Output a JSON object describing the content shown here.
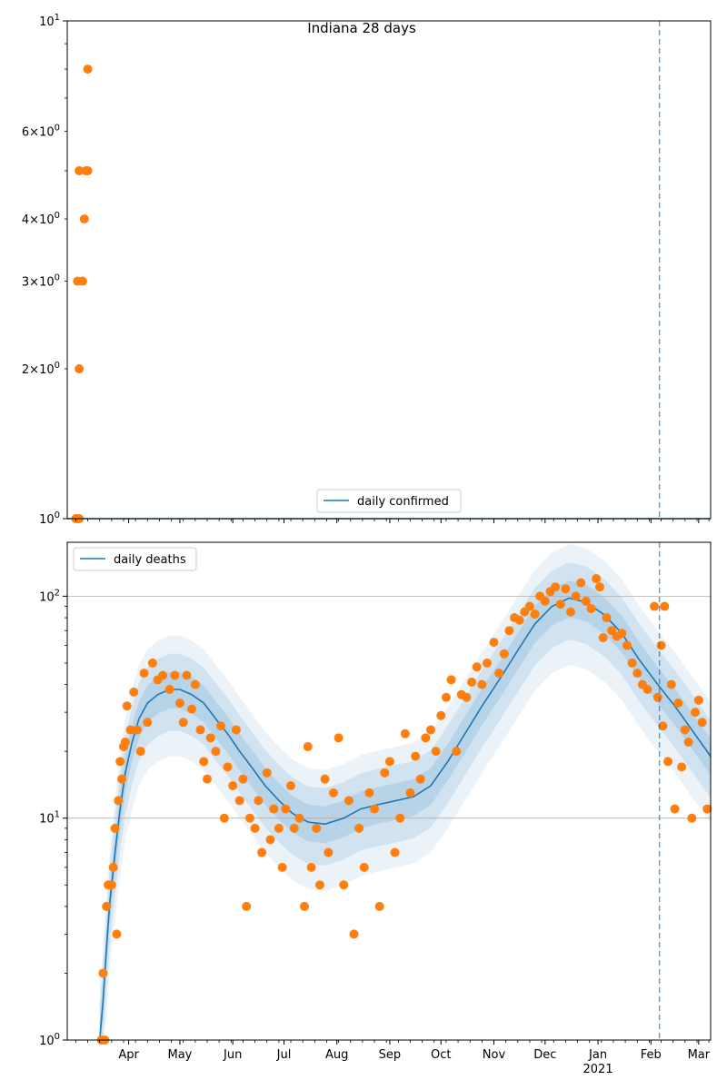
{
  "colors": {
    "line": "#1f77b4",
    "points": "#ff7f0e",
    "band": "#1f77b4",
    "grid": "#b0b0b0",
    "vline": "#1f77b4"
  },
  "chart_data": [
    {
      "type": "scatter",
      "title": "Indiana 28 days",
      "scale": "log",
      "ylim": [
        1,
        10
      ],
      "y_ticks": [
        {
          "v": 1,
          "label": "10^0"
        },
        {
          "v": 10,
          "label": "10^1"
        }
      ],
      "y_minor_ticks": [
        {
          "v": 2,
          "label": "2×10^0"
        },
        {
          "v": 3,
          "label": "3×10^0"
        },
        {
          "v": 4,
          "label": "4×10^0"
        },
        {
          "v": 6,
          "label": "6×10^0"
        }
      ],
      "x_range": [
        "2020-02-25",
        "2021-03-08"
      ],
      "legend": {
        "position": "bottom-center",
        "entries": [
          "daily confirmed"
        ]
      },
      "vline": "2021-02-06",
      "grid": false,
      "series": [
        {
          "name": "daily confirmed",
          "kind": "line",
          "points": [
            [
              "2020-02-25",
              1
            ],
            [
              "2021-03-08",
              1
            ]
          ]
        },
        {
          "name": "observed",
          "kind": "scatter",
          "points": [
            [
              "2020-03-01",
              1
            ],
            [
              "2020-03-02",
              1
            ],
            [
              "2020-03-03",
              1
            ],
            [
              "2020-03-02",
              3
            ],
            [
              "2020-03-03",
              2
            ],
            [
              "2020-03-03",
              5
            ],
            [
              "2020-03-05",
              3
            ],
            [
              "2020-03-06",
              4
            ],
            [
              "2020-03-07",
              5
            ],
            [
              "2020-03-08",
              5
            ],
            [
              "2020-03-08",
              8
            ]
          ]
        }
      ]
    },
    {
      "type": "line",
      "scale": "log",
      "ylim": [
        1,
        175
      ],
      "y_ticks": [
        {
          "v": 1,
          "label": "10^0"
        },
        {
          "v": 10,
          "label": "10^1"
        },
        {
          "v": 100,
          "label": "10^2"
        }
      ],
      "x_ticks": [
        {
          "date": "2020-04-01",
          "label": "Apr"
        },
        {
          "date": "2020-05-01",
          "label": "May"
        },
        {
          "date": "2020-06-01",
          "label": "Jun"
        },
        {
          "date": "2020-07-01",
          "label": "Jul"
        },
        {
          "date": "2020-08-01",
          "label": "Aug"
        },
        {
          "date": "2020-09-01",
          "label": "Sep"
        },
        {
          "date": "2020-10-01",
          "label": "Oct"
        },
        {
          "date": "2020-11-01",
          "label": "Nov"
        },
        {
          "date": "2020-12-01",
          "label": "Dec"
        },
        {
          "date": "2021-01-01",
          "label": "Jan",
          "sublabel": "2021"
        },
        {
          "date": "2021-02-01",
          "label": "Feb"
        },
        {
          "date": "2021-03-01",
          "label": "Mar"
        }
      ],
      "x_range": [
        "2020-02-25",
        "2021-03-08"
      ],
      "legend": {
        "position": "top-left",
        "entries": [
          "daily deaths"
        ]
      },
      "vline": "2021-02-06",
      "grid": true,
      "series": [
        {
          "name": "daily deaths",
          "kind": "line",
          "points": [
            [
              "2020-03-15",
              1
            ],
            [
              "2020-03-17",
              1.5
            ],
            [
              "2020-03-19",
              2.6
            ],
            [
              "2020-03-21",
              4.2
            ],
            [
              "2020-03-24",
              7
            ],
            [
              "2020-03-27",
              11
            ],
            [
              "2020-03-30",
              16
            ],
            [
              "2020-04-03",
              22
            ],
            [
              "2020-04-07",
              28
            ],
            [
              "2020-04-12",
              33
            ],
            [
              "2020-04-18",
              36
            ],
            [
              "2020-04-25",
              38
            ],
            [
              "2020-05-01",
              38
            ],
            [
              "2020-05-08",
              36
            ],
            [
              "2020-05-15",
              33
            ],
            [
              "2020-05-22",
              28
            ],
            [
              "2020-05-29",
              24
            ],
            [
              "2020-06-05",
              20
            ],
            [
              "2020-06-12",
              17
            ],
            [
              "2020-06-20",
              14
            ],
            [
              "2020-06-28",
              12
            ],
            [
              "2020-07-06",
              10.5
            ],
            [
              "2020-07-15",
              9.6
            ],
            [
              "2020-07-25",
              9.4
            ],
            [
              "2020-08-05",
              10
            ],
            [
              "2020-08-15",
              11
            ],
            [
              "2020-08-25",
              11.5
            ],
            [
              "2020-09-05",
              12
            ],
            [
              "2020-09-15",
              12.5
            ],
            [
              "2020-09-25",
              14
            ],
            [
              "2020-10-05",
              18
            ],
            [
              "2020-10-15",
              24
            ],
            [
              "2020-10-25",
              32
            ],
            [
              "2020-11-05",
              43
            ],
            [
              "2020-11-15",
              57
            ],
            [
              "2020-11-25",
              75
            ],
            [
              "2020-12-05",
              90
            ],
            [
              "2020-12-15",
              98
            ],
            [
              "2020-12-25",
              94
            ],
            [
              "2021-01-05",
              82
            ],
            [
              "2021-01-15",
              68
            ],
            [
              "2021-01-25",
              52
            ],
            [
              "2021-02-05",
              40
            ],
            [
              "2021-02-15",
              32
            ],
            [
              "2021-02-25",
              25
            ],
            [
              "2021-03-08",
              19
            ]
          ]
        },
        {
          "name": "observed",
          "kind": "scatter",
          "points": [
            [
              "2020-03-16",
              1
            ],
            [
              "2020-03-17",
              2
            ],
            [
              "2020-03-18",
              1
            ],
            [
              "2020-03-19",
              4
            ],
            [
              "2020-03-20",
              5
            ],
            [
              "2020-03-22",
              5
            ],
            [
              "2020-03-23",
              6
            ],
            [
              "2020-03-24",
              9
            ],
            [
              "2020-03-25",
              3
            ],
            [
              "2020-03-26",
              12
            ],
            [
              "2020-03-27",
              18
            ],
            [
              "2020-03-28",
              15
            ],
            [
              "2020-03-29",
              21
            ],
            [
              "2020-03-30",
              22
            ],
            [
              "2020-03-31",
              32
            ],
            [
              "2020-04-02",
              25
            ],
            [
              "2020-04-04",
              37
            ],
            [
              "2020-04-06",
              25
            ],
            [
              "2020-04-08",
              20
            ],
            [
              "2020-04-10",
              45
            ],
            [
              "2020-04-12",
              27
            ],
            [
              "2020-04-15",
              50
            ],
            [
              "2020-04-18",
              42
            ],
            [
              "2020-04-21",
              44
            ],
            [
              "2020-04-25",
              38
            ],
            [
              "2020-04-28",
              44
            ],
            [
              "2020-05-01",
              33
            ],
            [
              "2020-05-03",
              27
            ],
            [
              "2020-05-05",
              44
            ],
            [
              "2020-05-08",
              31
            ],
            [
              "2020-05-10",
              40
            ],
            [
              "2020-05-13",
              25
            ],
            [
              "2020-05-15",
              18
            ],
            [
              "2020-05-17",
              15
            ],
            [
              "2020-05-19",
              23
            ],
            [
              "2020-05-22",
              20
            ],
            [
              "2020-05-25",
              26
            ],
            [
              "2020-05-27",
              10
            ],
            [
              "2020-05-29",
              17
            ],
            [
              "2020-06-01",
              14
            ],
            [
              "2020-06-03",
              25
            ],
            [
              "2020-06-05",
              12
            ],
            [
              "2020-06-07",
              15
            ],
            [
              "2020-06-09",
              4
            ],
            [
              "2020-06-11",
              10
            ],
            [
              "2020-06-14",
              9
            ],
            [
              "2020-06-16",
              12
            ],
            [
              "2020-06-18",
              7
            ],
            [
              "2020-06-21",
              16
            ],
            [
              "2020-06-23",
              8
            ],
            [
              "2020-06-25",
              11
            ],
            [
              "2020-06-28",
              9
            ],
            [
              "2020-06-30",
              6
            ],
            [
              "2020-07-02",
              11
            ],
            [
              "2020-07-05",
              14
            ],
            [
              "2020-07-07",
              9
            ],
            [
              "2020-07-10",
              10
            ],
            [
              "2020-07-13",
              4
            ],
            [
              "2020-07-15",
              21
            ],
            [
              "2020-07-17",
              6
            ],
            [
              "2020-07-20",
              9
            ],
            [
              "2020-07-22",
              5
            ],
            [
              "2020-07-25",
              15
            ],
            [
              "2020-07-27",
              7
            ],
            [
              "2020-07-30",
              13
            ],
            [
              "2020-08-02",
              23
            ],
            [
              "2020-08-05",
              5
            ],
            [
              "2020-08-08",
              12
            ],
            [
              "2020-08-11",
              3
            ],
            [
              "2020-08-14",
              9
            ],
            [
              "2020-08-17",
              6
            ],
            [
              "2020-08-20",
              13
            ],
            [
              "2020-08-23",
              11
            ],
            [
              "2020-08-26",
              4
            ],
            [
              "2020-08-29",
              16
            ],
            [
              "2020-09-01",
              18
            ],
            [
              "2020-09-04",
              7
            ],
            [
              "2020-09-07",
              10
            ],
            [
              "2020-09-10",
              24
            ],
            [
              "2020-09-13",
              13
            ],
            [
              "2020-09-16",
              19
            ],
            [
              "2020-09-19",
              15
            ],
            [
              "2020-09-22",
              23
            ],
            [
              "2020-09-25",
              25
            ],
            [
              "2020-09-28",
              20
            ],
            [
              "2020-10-01",
              29
            ],
            [
              "2020-10-04",
              35
            ],
            [
              "2020-10-07",
              42
            ],
            [
              "2020-10-10",
              20
            ],
            [
              "2020-10-13",
              36
            ],
            [
              "2020-10-16",
              35
            ],
            [
              "2020-10-19",
              41
            ],
            [
              "2020-10-22",
              48
            ],
            [
              "2020-10-25",
              40
            ],
            [
              "2020-10-28",
              50
            ],
            [
              "2020-11-01",
              62
            ],
            [
              "2020-11-04",
              45
            ],
            [
              "2020-11-07",
              55
            ],
            [
              "2020-11-10",
              70
            ],
            [
              "2020-11-13",
              80
            ],
            [
              "2020-11-16",
              78
            ],
            [
              "2020-11-19",
              85
            ],
            [
              "2020-11-22",
              90
            ],
            [
              "2020-11-25",
              83
            ],
            [
              "2020-11-28",
              100
            ],
            [
              "2020-12-01",
              95
            ],
            [
              "2020-12-04",
              105
            ],
            [
              "2020-12-07",
              110
            ],
            [
              "2020-12-10",
              92
            ],
            [
              "2020-12-13",
              108
            ],
            [
              "2020-12-16",
              85
            ],
            [
              "2020-12-19",
              100
            ],
            [
              "2020-12-22",
              115
            ],
            [
              "2020-12-25",
              95
            ],
            [
              "2020-12-28",
              88
            ],
            [
              "2020-12-31",
              120
            ],
            [
              "2021-01-02",
              110
            ],
            [
              "2021-01-04",
              65
            ],
            [
              "2021-01-06",
              80
            ],
            [
              "2021-01-09",
              70
            ],
            [
              "2021-01-12",
              66
            ],
            [
              "2021-01-15",
              68
            ],
            [
              "2021-01-18",
              60
            ],
            [
              "2021-01-21",
              50
            ],
            [
              "2021-01-24",
              45
            ],
            [
              "2021-01-27",
              40
            ],
            [
              "2021-01-30",
              38
            ],
            [
              "2021-02-03",
              90
            ],
            [
              "2021-02-05",
              35
            ],
            [
              "2021-02-07",
              60
            ],
            [
              "2021-02-08",
              26
            ],
            [
              "2021-02-09",
              90
            ],
            [
              "2021-02-11",
              18
            ],
            [
              "2021-02-13",
              40
            ],
            [
              "2021-02-15",
              11
            ],
            [
              "2021-02-17",
              33
            ],
            [
              "2021-02-19",
              17
            ],
            [
              "2021-02-21",
              25
            ],
            [
              "2021-02-23",
              22
            ],
            [
              "2021-02-25",
              10
            ],
            [
              "2021-02-27",
              30
            ],
            [
              "2021-03-01",
              34
            ],
            [
              "2021-03-03",
              27
            ],
            [
              "2021-03-06",
              11
            ]
          ]
        }
      ]
    }
  ]
}
